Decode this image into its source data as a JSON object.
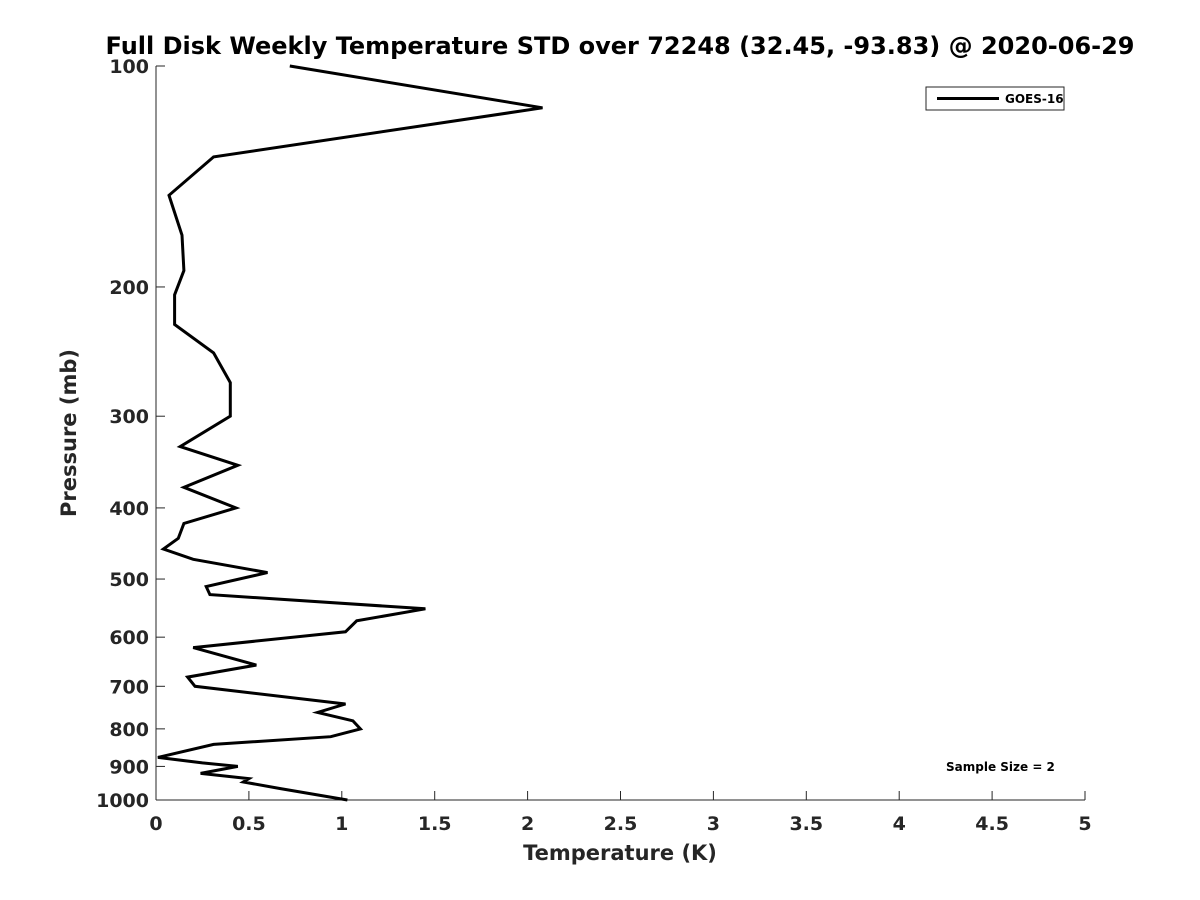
{
  "chart_data": {
    "type": "line",
    "title": "Full Disk Weekly Temperature STD over 72248 (32.45, -93.83) @ 2020-06-29",
    "xlabel": "Temperature (K)",
    "ylabel": "Pressure (mb)",
    "xlim": [
      0,
      5
    ],
    "ylim": [
      100,
      1000
    ],
    "y_scale": "log",
    "y_reversed": true,
    "x_ticks": [
      "0",
      "0.5",
      "1",
      "1.5",
      "2",
      "2.5",
      "3",
      "3.5",
      "4",
      "4.5",
      "5"
    ],
    "y_ticks": [
      "100",
      "200",
      "300",
      "400",
      "500",
      "600",
      "700",
      "800",
      "900",
      "1000"
    ],
    "grid": false,
    "legend_position": "top-right",
    "line_color": "#000000",
    "annotation": "Sample Size = 2",
    "series": [
      {
        "name": "GOES-16",
        "x": [
          0.72,
          2.08,
          0.31,
          0.07,
          0.14,
          0.15,
          0.1,
          0.1,
          0.31,
          0.4,
          0.4,
          0.13,
          0.44,
          0.15,
          0.43,
          0.15,
          0.12,
          0.04,
          0.2,
          0.6,
          0.27,
          0.29,
          1.45,
          1.08,
          1.02,
          0.2,
          0.54,
          0.17,
          0.21,
          1.02,
          0.87,
          1.06,
          1.1,
          0.94,
          0.31,
          0.01,
          0.25,
          0.44,
          0.24,
          0.5,
          0.47,
          0.67,
          1.03
        ],
        "y": [
          100,
          114,
          133,
          150,
          170,
          190,
          205,
          225,
          246,
          270,
          300,
          330,
          350,
          375,
          400,
          420,
          440,
          455,
          470,
          490,
          512,
          525,
          549,
          570,
          590,
          620,
          655,
          680,
          700,
          740,
          760,
          780,
          800,
          820,
          840,
          875,
          890,
          900,
          920,
          935,
          945,
          965,
          1000
        ]
      }
    ]
  }
}
